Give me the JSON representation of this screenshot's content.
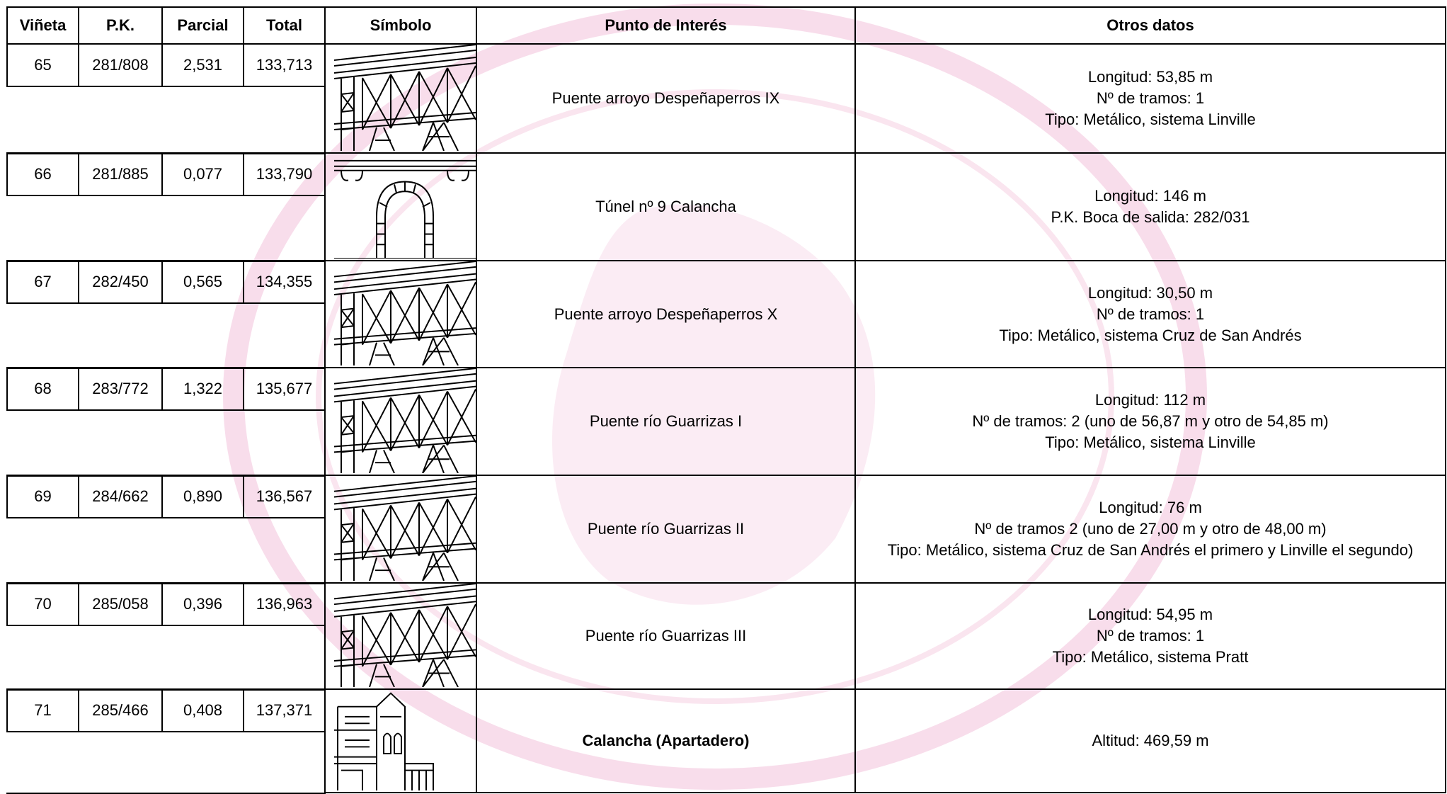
{
  "table": {
    "header": [
      "Viñeta",
      "P.K.",
      "Parcial",
      "Total",
      "Símbolo",
      "Punto de Interés",
      "Otros datos"
    ],
    "rows": [
      {
        "vineta": "65",
        "pk": "281/808",
        "parcial": "2,531",
        "total": "133,713",
        "punto": "Puente arroyo Despeñaperros IX",
        "otros": [
          "Longitud: 53,85 m",
          "Nº de tramos: 1",
          "Tipo: Metálico, sistema Linville"
        ]
      },
      {
        "vineta": "66",
        "pk": "281/885",
        "parcial": "0,077",
        "total": "133,790",
        "punto": "Túnel nº 9 Calancha",
        "otros": [
          "Longitud: 146 m",
          "P.K. Boca de salida: 282/031"
        ]
      },
      {
        "vineta": "67",
        "pk": "282/450",
        "parcial": "0,565",
        "total": "134,355",
        "punto": "Puente arroyo Despeñaperros X",
        "otros": [
          "Longitud: 30,50 m",
          "Nº de tramos: 1",
          "Tipo: Metálico, sistema Cruz de San Andrés"
        ]
      },
      {
        "vineta": "68",
        "pk": "283/772",
        "parcial": "1,322",
        "total": "135,677",
        "punto": "Puente río Guarrizas I",
        "otros": [
          "Longitud: 112 m",
          "Nº de tramos: 2 (uno de 56,87 m y otro de 54,85 m)",
          "Tipo: Metálico, sistema Linville"
        ]
      },
      {
        "vineta": "69",
        "pk": "284/662",
        "parcial": "0,890",
        "total": "136,567",
        "punto": "Puente río Guarrizas II",
        "otros": [
          "Longitud: 76 m",
          "Nº de tramos 2 (uno de 27,00 m y otro de 48,00 m)",
          "Tipo: Metálico, sistema Cruz de San Andrés el primero y Linville el segundo)"
        ]
      },
      {
        "vineta": "70",
        "pk": "285/058",
        "parcial": "0,396",
        "total": "136,963",
        "punto": "Puente río Guarrizas III",
        "otros": [
          "Longitud: 54,95 m",
          "Nº de tramos: 1",
          "Tipo: Metálico, sistema Pratt"
        ]
      },
      {
        "vineta": "71",
        "pk": "285/466",
        "parcial": "0,408",
        "total": "137,371",
        "punto": "Calancha (Apartadero)",
        "otros": [
          "Altitud: 469,59 m"
        ]
      }
    ]
  }
}
